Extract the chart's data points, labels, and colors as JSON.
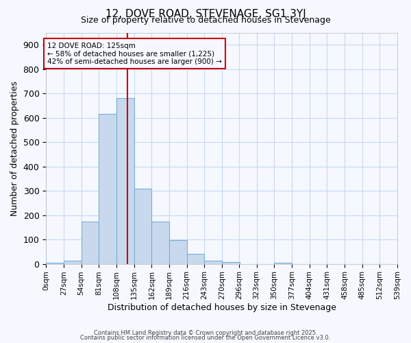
{
  "title": "12, DOVE ROAD, STEVENAGE, SG1 3YJ",
  "subtitle": "Size of property relative to detached houses in Stevenage",
  "xlabel": "Distribution of detached houses by size in Stevenage",
  "ylabel": "Number of detached properties",
  "bar_color": "#c8d9ed",
  "bar_edge_color": "#7aaed6",
  "bin_edges": [
    0,
    27,
    54,
    81,
    108,
    135,
    162,
    189,
    216,
    243,
    270,
    296,
    323,
    350,
    377,
    404,
    431,
    458,
    485,
    512,
    539
  ],
  "bar_heights": [
    5,
    12,
    175,
    615,
    680,
    310,
    175,
    97,
    40,
    14,
    8,
    0,
    0,
    5,
    0,
    0,
    0,
    0,
    0,
    0
  ],
  "vline_x": 125,
  "vline_color": "#cc0000",
  "annotation_title": "12 DOVE ROAD: 125sqm",
  "annotation_line1": "← 58% of detached houses are smaller (1,225)",
  "annotation_line2": "42% of semi-detached houses are larger (900) →",
  "annotation_box_color": "#cc0000",
  "ylim": [
    0,
    950
  ],
  "yticks": [
    0,
    100,
    200,
    300,
    400,
    500,
    600,
    700,
    800,
    900
  ],
  "xtick_labels": [
    "0sqm",
    "27sqm",
    "54sqm",
    "81sqm",
    "108sqm",
    "135sqm",
    "162sqm",
    "189sqm",
    "216sqm",
    "243sqm",
    "270sqm",
    "296sqm",
    "323sqm",
    "350sqm",
    "377sqm",
    "404sqm",
    "431sqm",
    "458sqm",
    "485sqm",
    "512sqm",
    "539sqm"
  ],
  "footer1": "Contains HM Land Registry data © Crown copyright and database right 2025.",
  "footer2": "Contains public sector information licensed under the Open Government Licence v3.0.",
  "background_color": "#f5f8ff",
  "plot_bg_color": "#f5f8ff",
  "grid_color": "#c8d8f0"
}
